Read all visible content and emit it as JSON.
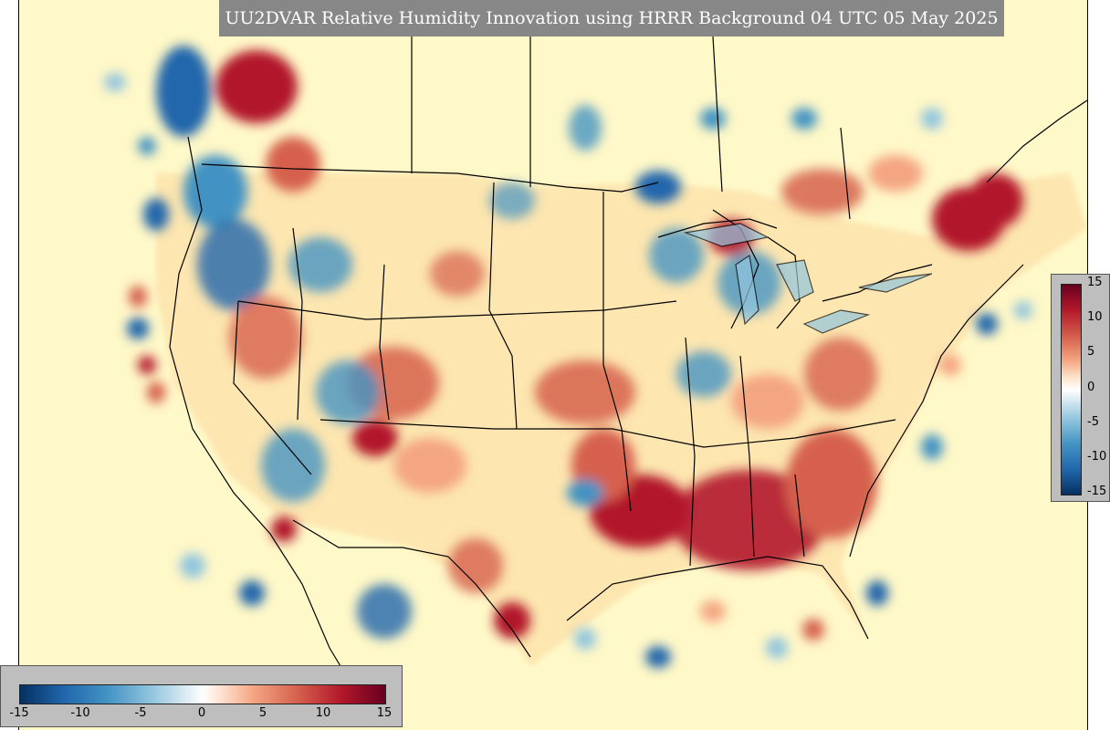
{
  "title": "UU2DVAR Relative Humidity Innovation using HRRR Background 04 UTC 05 May 2025",
  "colorbar": {
    "min": -15,
    "max": 15,
    "vertical_ticks": [
      "15",
      "10",
      "5",
      "0",
      "-5",
      "-10",
      "-15"
    ],
    "horizontal_ticks": [
      "-15",
      "-10",
      "-5",
      "0",
      "5",
      "10",
      "15"
    ],
    "colors": [
      "#053061",
      "#2166ac",
      "#4393c3",
      "#92c5de",
      "#d1e5f0",
      "#ffffff",
      "#fddbc7",
      "#f4a582",
      "#d6604d",
      "#b2182b",
      "#67001f"
    ]
  },
  "map": {
    "background_color": "#fff8c8",
    "variable": "relative humidity innovation",
    "region": "CONUS"
  }
}
